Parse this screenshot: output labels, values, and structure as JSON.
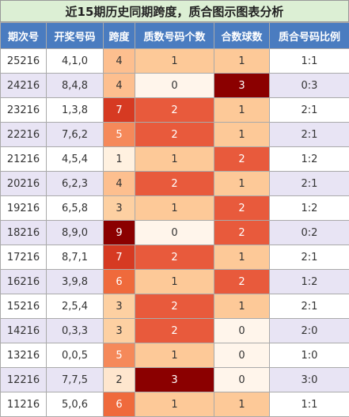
{
  "title": "近15期历史同期跨度，质合图示图表分析",
  "table": {
    "header": [
      "期次号",
      "开奖号码",
      "跨度",
      "质数号码个数",
      "合数球数",
      "质合号码比例"
    ],
    "rows": [
      [
        "25216",
        "4,1,0",
        4,
        1,
        1,
        "1:1"
      ],
      [
        "24216",
        "8,4,8",
        4,
        0,
        3,
        "0:3"
      ],
      [
        "23216",
        "1,3,8",
        7,
        2,
        1,
        "2:1"
      ],
      [
        "22216",
        "7,6,2",
        5,
        2,
        1,
        "2:1"
      ],
      [
        "21216",
        "4,5,4",
        1,
        1,
        2,
        "1:2"
      ],
      [
        "20216",
        "6,2,3",
        4,
        2,
        1,
        "2:1"
      ],
      [
        "19216",
        "6,5,8",
        3,
        1,
        2,
        "1:2"
      ],
      [
        "18216",
        "8,9,0",
        9,
        0,
        2,
        "0:2"
      ],
      [
        "17216",
        "8,7,1",
        7,
        2,
        1,
        "2:1"
      ],
      [
        "16216",
        "3,9,8",
        6,
        1,
        2,
        "1:2"
      ],
      [
        "15216",
        "2,5,4",
        3,
        2,
        1,
        "2:1"
      ],
      [
        "14216",
        "0,3,3",
        3,
        2,
        0,
        "2:0"
      ],
      [
        "13216",
        "0,0,5",
        5,
        1,
        0,
        "1:0"
      ],
      [
        "12216",
        "7,7,5",
        2,
        3,
        0,
        "3:0"
      ],
      [
        "11216",
        "5,0,6",
        6,
        1,
        1,
        "1:1"
      ]
    ]
  }
}
